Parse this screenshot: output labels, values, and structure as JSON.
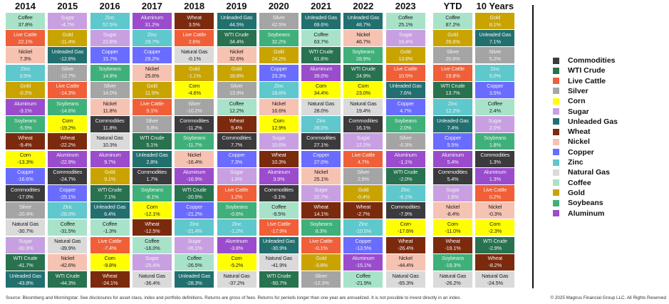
{
  "chart_data": {
    "type": "table",
    "columns": [
      "2014",
      "2015",
      "2016",
      "2017",
      "2018",
      "2019",
      "2020",
      "2021",
      "2022",
      "2023",
      "YTD",
      "10 Years"
    ],
    "rankings": [
      [
        [
          "Coffee",
          "37.8%"
        ],
        [
          "Live Cattle",
          "22.1%"
        ],
        [
          "Nickel",
          "7.3%"
        ],
        [
          "Zinc",
          "3.5%"
        ],
        [
          "Gold",
          "-0.2%"
        ],
        [
          "Aluminum",
          "-3.1%"
        ],
        [
          "Soybeans",
          "-5.5%"
        ],
        [
          "Wheat",
          "-9.4%"
        ],
        [
          "Corn",
          "-13.3%"
        ],
        [
          "Copper",
          "-16.6%"
        ],
        [
          "Commodities",
          "-17.0%"
        ],
        [
          "Silver",
          "-20.4%"
        ],
        [
          "Natural Gas",
          "-30.7%"
        ],
        [
          "Sugar",
          "-30.9%"
        ],
        [
          "WTI Crude",
          "-41.7%"
        ],
        [
          "Unleaded Gas",
          "-43.8%"
        ]
      ],
      [
        [
          "Sugar",
          "-4.7%"
        ],
        [
          "Gold",
          "-11.4%"
        ],
        [
          "Unleaded Gas",
          "-12.6%"
        ],
        [
          "Silver",
          "-12.7%"
        ],
        [
          "Live Cattle",
          "-14.3%"
        ],
        [
          "Soybeans",
          "-14.6%"
        ],
        [
          "Corn",
          "-19.2%"
        ],
        [
          "Wheat",
          "-22.2%"
        ],
        [
          "Aluminum",
          "-22.9%"
        ],
        [
          "Commodities",
          "-24.7%"
        ],
        [
          "Copper",
          "-25.1%"
        ],
        [
          "Zinc",
          "-28.0%"
        ],
        [
          "Coffee",
          "-31.5%"
        ],
        [
          "Natural Gas",
          "-39.9%"
        ],
        [
          "Nickel",
          "-42.6%"
        ],
        [
          "WTI Crude",
          "-44.3%"
        ]
      ],
      [
        [
          "Zinc",
          "57.5%"
        ],
        [
          "Sugar",
          "22.8%"
        ],
        [
          "Copper",
          "15.7%"
        ],
        [
          "Soybeans",
          "14.8%"
        ],
        [
          "Silver",
          "14.0%"
        ],
        [
          "Nickel",
          "11.8%"
        ],
        [
          "Commodities",
          "11.8%"
        ],
        [
          "Natural Gas",
          "10.3%"
        ],
        [
          "Aluminum",
          "9.7%"
        ],
        [
          "Gold",
          "9.1%"
        ],
        [
          "WTI Crude",
          "7.1%"
        ],
        [
          "Unleaded Gas",
          "6.4%"
        ],
        [
          "Coffee",
          "-1.3%"
        ],
        [
          "Live Cattle",
          "-7.4%"
        ],
        [
          "Corn",
          "-9.8%"
        ],
        [
          "Wheat",
          "-24.1%"
        ]
      ],
      [
        [
          "Aluminum",
          "31.2%"
        ],
        [
          "Zinc",
          "29.7%"
        ],
        [
          "Copper",
          "29.2%"
        ],
        [
          "Nickel",
          "25.6%"
        ],
        [
          "Gold",
          "11.9%"
        ],
        [
          "Live Cattle",
          "9.1%"
        ],
        [
          "Silver",
          "5.8%"
        ],
        [
          "WTI Crude",
          "5.1%"
        ],
        [
          "Unleaded Gas",
          "2.8%"
        ],
        [
          "Commodities",
          "1.7%"
        ],
        [
          "Soybeans",
          "-8.1%"
        ],
        [
          "Corn",
          "-12.1%"
        ],
        [
          "Wheat",
          "-12.5%"
        ],
        [
          "Coffee",
          "-16.0%"
        ],
        [
          "Sugar",
          "-25.4%"
        ],
        [
          "Natural Gas",
          "-36.4%"
        ]
      ],
      [
        [
          "Wheat",
          "3.5%"
        ],
        [
          "Live Cattle",
          "2.6%"
        ],
        [
          "Natural Gas",
          "-0.1%"
        ],
        [
          "Gold",
          "-1.1%"
        ],
        [
          "Corn",
          "-4.6%"
        ],
        [
          "Silver",
          "-10.2%"
        ],
        [
          "Commodities",
          "-11.2%"
        ],
        [
          "Soybeans",
          "-11.7%"
        ],
        [
          "Nickel",
          "-16.4%"
        ],
        [
          "Aluminum",
          "-16.9%"
        ],
        [
          "WTI Crude",
          "-20.5%"
        ],
        [
          "Copper",
          "-21.2%"
        ],
        [
          "Zinc",
          "-21.4%"
        ],
        [
          "Sugar",
          "-26.1%"
        ],
        [
          "Coffee",
          "-26.5%"
        ],
        [
          "Unleaded Gas",
          "-28.3%"
        ]
      ],
      [
        [
          "Unleaded Gas",
          "44.5%"
        ],
        [
          "WTI Crude",
          "34.4%"
        ],
        [
          "Nickel",
          "32.6%"
        ],
        [
          "Gold",
          "18.8%"
        ],
        [
          "Silver",
          "13.9%"
        ],
        [
          "Coffee",
          "12.2%"
        ],
        [
          "Wheat",
          "9.4%"
        ],
        [
          "Commodities",
          "7.7%"
        ],
        [
          "Copper",
          "7.3%"
        ],
        [
          "Sugar",
          "1.9%"
        ],
        [
          "Live Cattle",
          "1.2%"
        ],
        [
          "Soybeans",
          "-0.6%"
        ],
        [
          "Zinc",
          "-1.2%"
        ],
        [
          "Aluminum",
          "-3.8%"
        ],
        [
          "Corn",
          "-5.2%"
        ],
        [
          "Natural Gas",
          "-37.2%"
        ]
      ],
      [
        [
          "Silver",
          "42.5%"
        ],
        [
          "Soybeans",
          "32.2%"
        ],
        [
          "Gold",
          "24.2%"
        ],
        [
          "Copper",
          "23.3%"
        ],
        [
          "Zinc",
          "18.6%"
        ],
        [
          "Nickel",
          "16.6%"
        ],
        [
          "Corn",
          "12.9%"
        ],
        [
          "Sugar",
          "10.6%"
        ],
        [
          "Wheat",
          "10.3%"
        ],
        [
          "Aluminum",
          "3.9%"
        ],
        [
          "Commodities",
          "-3.1%"
        ],
        [
          "Coffee",
          "-9.5%"
        ],
        [
          "Live Cattle",
          "-17.9%"
        ],
        [
          "Unleaded Gas",
          "-30.9%"
        ],
        [
          "Natural Gas",
          "-41.9%"
        ],
        [
          "WTI Crude",
          "-50.7%"
        ]
      ],
      [
        [
          "Unleaded Gas",
          "69.6%"
        ],
        [
          "Coffee",
          "63.7%"
        ],
        [
          "WTI Crude",
          "61.6%"
        ],
        [
          "Aluminum",
          "39.0%"
        ],
        [
          "Corn",
          "34.4%"
        ],
        [
          "Natural Gas",
          "28.0%"
        ],
        [
          "Zinc",
          "28.0%"
        ],
        [
          "Commodities",
          "27.1%"
        ],
        [
          "Copper",
          "27.0%"
        ],
        [
          "Nickel",
          "25.1%"
        ],
        [
          "Sugar",
          "22.7%"
        ],
        [
          "Wheat",
          "14.1%"
        ],
        [
          "Soybeans",
          "8.3%"
        ],
        [
          "Live Cattle",
          "-0.1%"
        ],
        [
          "Gold",
          "-3.8%"
        ],
        [
          "Silver",
          "-12.3%"
        ]
      ],
      [
        [
          "Unleaded Gas",
          "48.7%"
        ],
        [
          "Nickel",
          "46.7%"
        ],
        [
          "Soybeans",
          "28.9%"
        ],
        [
          "WTI Crude",
          "24.9%"
        ],
        [
          "Corn",
          "23.0%"
        ],
        [
          "Natural Gas",
          "19.4%"
        ],
        [
          "Commodities",
          "16.1%"
        ],
        [
          "Sugar",
          "12.2%"
        ],
        [
          "Live Cattle",
          "4.7%"
        ],
        [
          "Silver",
          "2.6%"
        ],
        [
          "Gold",
          "-0.4%"
        ],
        [
          "Wheat",
          "-2.7%"
        ],
        [
          "Zinc",
          "-10.5%"
        ],
        [
          "Copper",
          "-13.5%"
        ],
        [
          "Aluminum",
          "-15.1%"
        ],
        [
          "Coffee",
          "-21.9%"
        ]
      ],
      [
        [
          "Coffee",
          "25.1%"
        ],
        [
          "Sugar",
          "19.4%"
        ],
        [
          "Gold",
          "13.8%"
        ],
        [
          "Live Cattle",
          "10.5%"
        ],
        [
          "Unleaded Gas",
          "7.6%"
        ],
        [
          "Copper",
          "4.7%"
        ],
        [
          "Soybeans",
          "2.0%"
        ],
        [
          "Silver",
          "-0.3%"
        ],
        [
          "Aluminum",
          "-1.1%"
        ],
        [
          "WTI Crude",
          "-2.0%"
        ],
        [
          "Zinc",
          "-6.1%"
        ],
        [
          "Commodities",
          "-7.9%"
        ],
        [
          "Corn",
          "-17.6%"
        ],
        [
          "Wheat",
          "-26.4%"
        ],
        [
          "Nickel",
          "-44.4%"
        ],
        [
          "Natural Gas",
          "-65.3%"
        ]
      ],
      [
        [
          "Coffee",
          "87.2%"
        ],
        [
          "Gold",
          "26.6%"
        ],
        [
          "Silver",
          "20.6%"
        ],
        [
          "Live Cattle",
          "19.8%"
        ],
        [
          "WTI Crude",
          "13.7%"
        ],
        [
          "Zinc",
          "12.2%"
        ],
        [
          "Unleaded Gas",
          "7.4%"
        ],
        [
          "Copper",
          "5.5%"
        ],
        [
          "Aluminum",
          "5.4%"
        ],
        [
          "Commodities",
          "5.4%"
        ],
        [
          "Sugar",
          "1.6%"
        ],
        [
          "Nickel",
          "-8.4%"
        ],
        [
          "Corn",
          "-11.0%"
        ],
        [
          "Wheat",
          "-19.1%"
        ],
        [
          "Soybeans",
          "-19.3%"
        ],
        [
          "Natural Gas",
          "-26.2%"
        ]
      ],
      [
        [
          "Gold",
          "8.1%"
        ],
        [
          "Unleaded Gas",
          "7.1%"
        ],
        [
          "Silver",
          "5.2%"
        ],
        [
          "Zinc",
          "5.0%"
        ],
        [
          "Copper",
          "3.5%"
        ],
        [
          "Coffee",
          "2.4%"
        ],
        [
          "Sugar",
          "2.0%"
        ],
        [
          "Soybeans",
          "1.8%"
        ],
        [
          "Commodities",
          "1.3%"
        ],
        [
          "Aluminum",
          "1.3%"
        ],
        [
          "Live Cattle",
          "0.2%"
        ],
        [
          "Nickel",
          "-0.3%"
        ],
        [
          "Corn",
          "-2.3%"
        ],
        [
          "WTI Crude",
          "-2.9%"
        ],
        [
          "Wheat",
          "-8.2%"
        ],
        [
          "Natural Gas",
          "-24.5%"
        ]
      ]
    ],
    "legend": [
      "Commodities",
      "WTI Crude",
      "Live Cattle",
      "Silver",
      "Corn",
      "Sugar",
      "Unleaded Gas",
      "Wheat",
      "Nickel",
      "Copper",
      "Zinc",
      "Natural Gas",
      "Coffee",
      "Gold",
      "Soybeans",
      "Aluminum"
    ],
    "legend_position": "right",
    "colors": {
      "Commodities": "#3b3a3c",
      "WTI Crude": "#28724f",
      "Live Cattle": "#f05f38",
      "Silver": "#a6a6a6",
      "Corn": "#ffff00",
      "Sugar": "#c8a0e2",
      "Unleaded Gas": "#21706f",
      "Wheat": "#7b2a0e",
      "Nickel": "#f6c2b2",
      "Copper": "#6a6cff",
      "Zinc": "#5ec8cd",
      "Natural Gas": "#dadada",
      "Coffee": "#a8e3c9",
      "Gold": "#c9a400",
      "Soybeans": "#3fb07a",
      "Aluminum": "#9a4ccd"
    }
  },
  "footer": {
    "source": "Source: Bloomberg and Morningstar. See disclosures for asset class, index and portfolio definitions. Returns are gross of fees. Returns for periods longer than one year are annualized. It is not possible to invest directly in an index.",
    "copyright": "© 2025 Magnus Financial Group LLC. All Rights Reserved"
  }
}
